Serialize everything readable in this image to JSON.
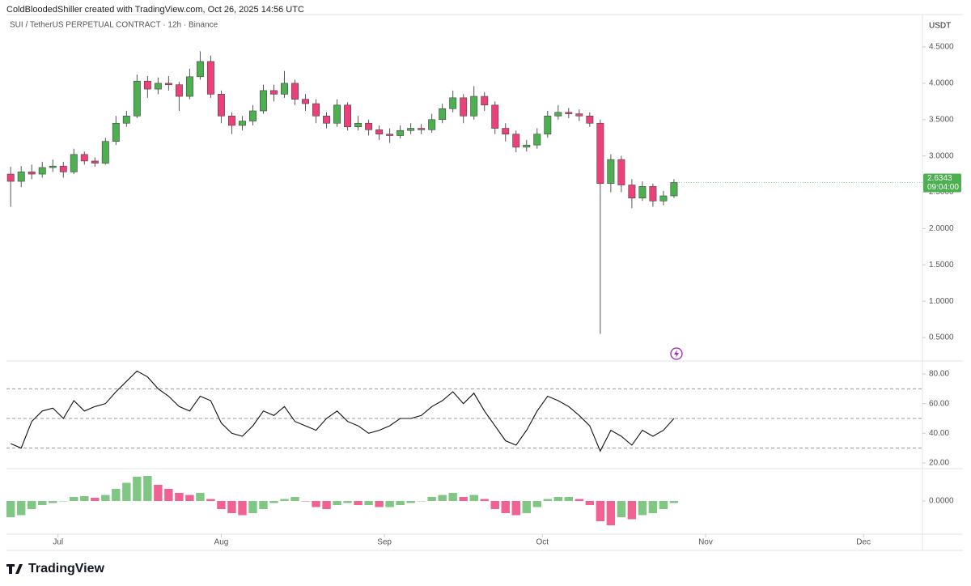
{
  "header": "ColdBloodedShiller created with TradingView.com, Oct 26, 2025 14:56 UTC",
  "footer": {
    "brand": "TradingView"
  },
  "chart_data": [
    {
      "type": "candlestick",
      "title": "SUI / TetherUS PERPETUAL CONTRACT · 12h · Binance",
      "y_unit": "USDT",
      "countdown": "09:04:00",
      "up_color": "#4caf50",
      "down_color": "#ec407a",
      "last_color": "#4caf50",
      "x": [
        -9,
        -7,
        -5,
        -3,
        -1,
        1,
        3,
        5,
        7,
        9,
        11,
        13,
        15,
        17,
        19,
        21,
        23,
        25,
        27,
        29,
        31,
        33,
        35,
        37,
        39,
        41,
        43,
        45,
        47,
        49,
        51,
        53,
        55,
        57,
        59,
        61,
        63,
        65,
        67,
        69,
        71,
        73,
        75,
        77,
        79,
        81,
        83,
        85,
        87,
        89,
        91,
        93,
        95,
        97,
        99,
        101,
        103,
        105,
        107,
        109,
        111,
        113,
        115,
        117
      ],
      "open": [
        2.75,
        2.65,
        2.78,
        2.75,
        2.84,
        2.86,
        2.78,
        3.02,
        2.93,
        2.9,
        3.2,
        3.45,
        3.55,
        4.03,
        3.92,
        4.0,
        3.98,
        3.82,
        4.09,
        4.3,
        3.85,
        3.55,
        3.42,
        3.48,
        3.62,
        3.9,
        3.85,
        4.0,
        3.78,
        3.72,
        3.55,
        3.45,
        3.7,
        3.4,
        3.45,
        3.36,
        3.3,
        3.28,
        3.35,
        3.38,
        3.36,
        3.5,
        3.65,
        3.8,
        3.55,
        3.82,
        3.7,
        3.38,
        3.3,
        3.12,
        3.15,
        3.3,
        3.55,
        3.6,
        3.58,
        3.55,
        3.45,
        2.62,
        2.95,
        2.6,
        2.42,
        2.58,
        2.38,
        2.45
      ],
      "high": [
        2.85,
        2.86,
        2.88,
        2.92,
        2.95,
        2.92,
        3.1,
        3.06,
        2.98,
        3.25,
        3.55,
        3.62,
        4.12,
        4.1,
        4.08,
        4.1,
        4.02,
        4.2,
        4.44,
        4.38,
        3.9,
        3.6,
        3.55,
        3.7,
        3.98,
        3.98,
        4.17,
        4.05,
        3.85,
        3.78,
        3.6,
        3.78,
        3.74,
        3.55,
        3.5,
        3.42,
        3.38,
        3.42,
        3.45,
        3.44,
        3.58,
        3.72,
        3.9,
        3.85,
        3.96,
        3.88,
        3.75,
        3.45,
        3.35,
        3.22,
        3.38,
        3.62,
        3.7,
        3.66,
        3.64,
        3.6,
        3.5,
        3.02,
        3.0,
        2.68,
        2.65,
        2.62,
        2.52,
        2.68
      ],
      "low": [
        2.3,
        2.57,
        2.68,
        2.7,
        2.78,
        2.7,
        2.75,
        2.88,
        2.85,
        2.88,
        3.15,
        3.4,
        3.52,
        3.8,
        3.85,
        3.9,
        3.62,
        3.78,
        4.05,
        3.8,
        3.45,
        3.3,
        3.35,
        3.42,
        3.58,
        3.75,
        3.8,
        3.7,
        3.62,
        3.45,
        3.38,
        3.4,
        3.35,
        3.35,
        3.28,
        3.22,
        3.18,
        3.24,
        3.3,
        3.3,
        3.32,
        3.45,
        3.6,
        3.45,
        3.5,
        3.62,
        3.3,
        3.2,
        3.05,
        3.06,
        3.1,
        3.25,
        3.5,
        3.52,
        3.48,
        3.4,
        0.55,
        2.5,
        2.5,
        2.28,
        2.38,
        2.3,
        2.32,
        2.42
      ],
      "close": [
        2.65,
        2.78,
        2.75,
        2.84,
        2.86,
        2.78,
        3.02,
        2.93,
        2.9,
        3.2,
        3.45,
        3.55,
        4.03,
        3.92,
        4.0,
        3.98,
        3.82,
        4.09,
        4.3,
        3.85,
        3.55,
        3.42,
        3.48,
        3.62,
        3.9,
        3.85,
        4.0,
        3.78,
        3.72,
        3.55,
        3.45,
        3.7,
        3.4,
        3.45,
        3.36,
        3.3,
        3.28,
        3.35,
        3.38,
        3.36,
        3.5,
        3.65,
        3.8,
        3.55,
        3.82,
        3.7,
        3.38,
        3.3,
        3.12,
        3.15,
        3.3,
        3.55,
        3.6,
        3.58,
        3.55,
        3.45,
        2.62,
        2.95,
        2.6,
        2.42,
        2.58,
        2.38,
        2.45,
        2.6343
      ],
      "xlim": [
        -9.8,
        164.2
      ],
      "ylim": [
        0.188,
        4.946
      ],
      "yticks": [
        {
          "value": 0.5,
          "label": "0.5000"
        },
        {
          "value": 1.0,
          "label": "1.0000"
        },
        {
          "value": 1.5,
          "label": "1.5000"
        },
        {
          "value": 2.0,
          "label": "2.0000"
        },
        {
          "value": 2.5,
          "label": "2.5000"
        },
        {
          "value": 3.0,
          "label": "3.0000"
        },
        {
          "value": 3.5,
          "label": "3.5000"
        },
        {
          "value": 4.0,
          "label": "4.0000"
        },
        {
          "value": 4.5,
          "label": "4.5000"
        }
      ],
      "xticks": [
        {
          "value": 0,
          "label": "Jul"
        },
        {
          "value": 31,
          "label": "Aug"
        },
        {
          "value": 62,
          "label": "Sep"
        },
        {
          "value": 92,
          "label": "Oct"
        },
        {
          "value": 123,
          "label": "Nov"
        },
        {
          "value": 153,
          "label": "Dec"
        }
      ]
    },
    {
      "type": "line",
      "color": "#111111",
      "band_color": "#999999",
      "values": [
        33,
        30,
        48,
        55,
        57,
        50,
        62,
        55,
        58,
        60,
        68,
        75,
        82,
        78,
        70,
        65,
        58,
        55,
        65,
        62,
        47,
        40,
        38,
        45,
        55,
        52,
        58,
        48,
        45,
        42,
        50,
        55,
        48,
        45,
        40,
        42,
        45,
        50,
        50,
        52,
        58,
        62,
        68,
        60,
        67,
        55,
        45,
        35,
        32,
        42,
        55,
        65,
        62,
        58,
        52,
        45,
        28,
        42,
        38,
        32,
        42,
        38,
        42,
        50
      ],
      "ylim": [
        16.7,
        88.2
      ],
      "bands": [
        70,
        50,
        30
      ],
      "yticks": [
        {
          "value": 20,
          "label": "20.00"
        },
        {
          "value": 40,
          "label": "40.00"
        },
        {
          "value": 60,
          "label": "60.00"
        },
        {
          "value": 80,
          "label": "80.00"
        }
      ]
    },
    {
      "type": "histogram",
      "up_color": "#81c784",
      "down_color": "#f06292",
      "values": [
        -0.04,
        -0.035,
        -0.02,
        -0.01,
        -0.005,
        0.0,
        0.01,
        0.012,
        0.008,
        0.015,
        0.03,
        0.045,
        0.06,
        0.062,
        0.04,
        0.03,
        0.02,
        0.015,
        0.02,
        0.005,
        -0.02,
        -0.03,
        -0.035,
        -0.03,
        -0.02,
        -0.005,
        0.005,
        0.01,
        0.0,
        -0.015,
        -0.02,
        -0.01,
        -0.005,
        -0.01,
        -0.01,
        -0.015,
        -0.015,
        -0.01,
        -0.005,
        0.0,
        0.01,
        0.015,
        0.02,
        0.01,
        0.015,
        0.005,
        -0.02,
        -0.03,
        -0.035,
        -0.03,
        -0.015,
        0.005,
        0.01,
        0.01,
        0.005,
        -0.01,
        -0.05,
        -0.06,
        -0.04,
        -0.045,
        -0.035,
        -0.03,
        -0.02,
        -0.005
      ],
      "ylim": [
        -0.082,
        0.078
      ],
      "yticks": [
        {
          "value": 0,
          "label": "0.0000"
        }
      ]
    }
  ]
}
